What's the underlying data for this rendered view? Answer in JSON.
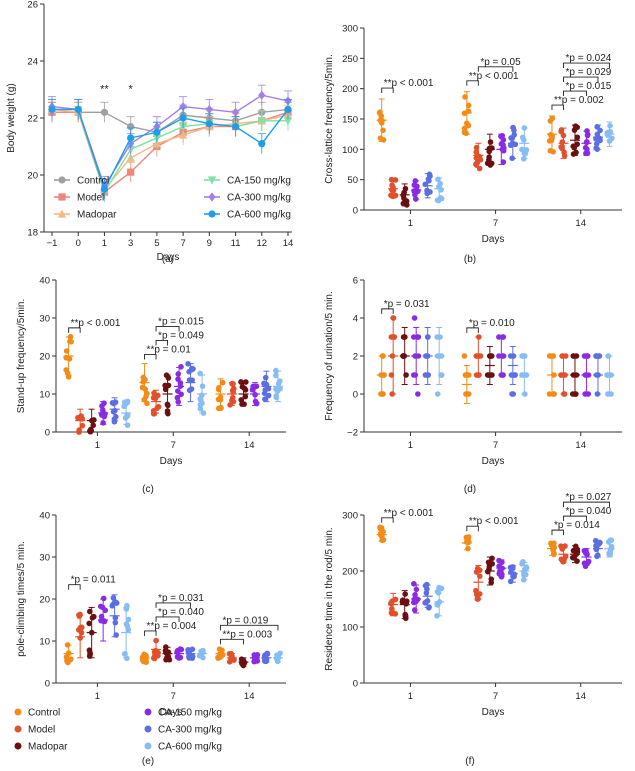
{
  "chart_data": [
    {
      "type": "line",
      "panel_label": "(a)",
      "xlabel": "Days",
      "ylabel": "Body weight (g)",
      "x": [
        -1,
        0,
        1,
        3,
        5,
        7,
        9,
        11,
        12,
        14
      ],
      "x_ticks": [
        "−1",
        "0",
        "1",
        "3",
        "5",
        "7",
        "9",
        "11",
        "12",
        "14"
      ],
      "ylim": [
        18,
        26
      ],
      "y_ticks": [
        "18",
        "20",
        "22",
        "24",
        "26"
      ],
      "annotations": [
        {
          "x": 1,
          "text": "**"
        },
        {
          "x": 3,
          "text": "*"
        }
      ],
      "series": [
        {
          "name": "Control",
          "color": "#a0a0a0",
          "marker": "circle",
          "values": [
            22.2,
            22.2,
            22.2,
            21.7,
            21.5,
            22.1,
            22.0,
            21.9,
            22.2,
            22.3
          ]
        },
        {
          "name": "Model",
          "color": "#f0857b",
          "marker": "square",
          "values": [
            22.2,
            22.2,
            19.4,
            20.1,
            21.0,
            21.5,
            21.7,
            21.7,
            21.9,
            22.2
          ]
        },
        {
          "name": "Madopar",
          "color": "#f5b886",
          "marker": "triangle-up",
          "values": [
            22.3,
            22.2,
            19.5,
            20.6,
            21.1,
            21.4,
            21.7,
            21.8,
            21.9,
            22.1
          ]
        },
        {
          "name": "CA-150 mg/kg",
          "color": "#7ee3a4",
          "marker": "triangle-down",
          "values": [
            22.3,
            22.3,
            19.4,
            20.9,
            21.3,
            21.7,
            21.8,
            21.7,
            21.9,
            21.9
          ]
        },
        {
          "name": "CA-300 mg/kg",
          "color": "#a57ee8",
          "marker": "diamond",
          "values": [
            22.4,
            22.3,
            19.6,
            21.1,
            21.7,
            22.4,
            22.3,
            22.2,
            22.8,
            22.6
          ]
        },
        {
          "name": "CA-600 mg/kg",
          "color": "#1f9de8",
          "marker": "circle",
          "values": [
            22.3,
            22.3,
            19.5,
            21.3,
            21.5,
            22.0,
            21.8,
            21.7,
            21.1,
            22.3
          ]
        }
      ]
    },
    {
      "type": "scatter",
      "panel_label": "(b)",
      "xlabel": "Days",
      "ylabel": "Cross-lattice frequency/5min.",
      "categories": [
        "1",
        "7",
        "14"
      ],
      "ylim": [
        0,
        300
      ],
      "y_ticks": [
        "0",
        "50",
        "100",
        "150",
        "200",
        "250",
        "300"
      ],
      "groups": [
        "Control",
        "Model",
        "Madopar",
        "CA-150 mg/kg",
        "CA-300 mg/kg",
        "CA-600 mg/kg"
      ],
      "medians": [
        [
          148,
          35,
          25,
          33,
          40,
          35
        ],
        [
          160,
          90,
          100,
          100,
          110,
          110
        ],
        [
          125,
          110,
          115,
          110,
          120,
          125
        ]
      ],
      "spreads": [
        [
          35,
          15,
          18,
          15,
          20,
          18
        ],
        [
          35,
          20,
          25,
          25,
          25,
          25
        ],
        [
          30,
          25,
          25,
          20,
          20,
          20
        ]
      ],
      "annotations": [
        {
          "day": 0,
          "groups": [
            0,
            1
          ],
          "text": "**p < 0.001"
        },
        {
          "day": 1,
          "groups": [
            0,
            1
          ],
          "text": "**p < 0.001"
        },
        {
          "day": 1,
          "groups": [
            1,
            4
          ],
          "text": "*p = 0.05"
        },
        {
          "day": 2,
          "groups": [
            0,
            1
          ],
          "text": "**p = 0.002"
        },
        {
          "day": 2,
          "groups": [
            1,
            3
          ],
          "text": "*p = 0.015"
        },
        {
          "day": 2,
          "groups": [
            1,
            4
          ],
          "text": "*p = 0.029"
        },
        {
          "day": 2,
          "groups": [
            1,
            5
          ],
          "text": "*p = 0.024"
        }
      ]
    },
    {
      "type": "scatter",
      "panel_label": "(c)",
      "xlabel": "Days",
      "ylabel": "Stand-up frequency/5min.",
      "categories": [
        "1",
        "7",
        "14"
      ],
      "ylim": [
        0,
        40
      ],
      "y_ticks": [
        "0",
        "10",
        "20",
        "30",
        "40"
      ],
      "groups": [
        "Control",
        "Model",
        "Madopar",
        "CA-150 mg/kg",
        "CA-300 mg/kg",
        "CA-600 mg/kg"
      ],
      "medians": [
        [
          20,
          3,
          3,
          5,
          6,
          5
        ],
        [
          13,
          8,
          10,
          12,
          13,
          10
        ],
        [
          10,
          10,
          10,
          10,
          12,
          12
        ]
      ],
      "spreads": [
        [
          5,
          3,
          3,
          3,
          3,
          3
        ],
        [
          5,
          3,
          5,
          5,
          5,
          5
        ],
        [
          4,
          3,
          3,
          3,
          4,
          4
        ]
      ],
      "annotations": [
        {
          "day": 0,
          "groups": [
            0,
            1
          ],
          "text": "**p < 0.001"
        },
        {
          "day": 1,
          "groups": [
            0,
            1
          ],
          "text": "**p = 0.01"
        },
        {
          "day": 1,
          "groups": [
            1,
            2
          ],
          "text": "*p = 0.049"
        },
        {
          "day": 1,
          "groups": [
            1,
            3
          ],
          "text": "*p = 0.015"
        }
      ]
    },
    {
      "type": "scatter",
      "panel_label": "(d)",
      "xlabel": "Days",
      "ylabel": "Frequency of urination/5 min.",
      "categories": [
        "1",
        "7",
        "14"
      ],
      "ylim": [
        -2,
        6
      ],
      "y_ticks": [
        "−2",
        "0",
        "2",
        "4",
        "6"
      ],
      "groups": [
        "Control",
        "Model",
        "Madopar",
        "CA-150 mg/kg",
        "CA-300 mg/kg",
        "CA-600 mg/kg"
      ],
      "medians": [
        [
          1,
          2,
          2,
          2,
          2,
          2
        ],
        [
          0.5,
          2,
          1.5,
          2,
          1.5,
          1
        ],
        [
          1,
          1,
          1,
          1,
          1,
          1
        ]
      ],
      "spreads": [
        [
          1,
          2,
          1.5,
          1.5,
          1.5,
          1.5
        ],
        [
          1,
          1,
          1,
          1,
          1,
          1
        ],
        [
          1,
          1,
          1,
          1,
          1,
          1
        ]
      ],
      "annotations": [
        {
          "day": 0,
          "groups": [
            0,
            1
          ],
          "text": "*p = 0.031"
        },
        {
          "day": 1,
          "groups": [
            0,
            1
          ],
          "text": "*p = 0.010"
        }
      ]
    },
    {
      "type": "scatter",
      "panel_label": "(e)",
      "xlabel": "Days",
      "ylabel": "pole-climbing times/5 min.",
      "categories": [
        "1",
        "7",
        "14"
      ],
      "ylim": [
        0,
        40
      ],
      "y_ticks": [
        "0",
        "10",
        "20",
        "30",
        "40"
      ],
      "groups": [
        "Control",
        "Model",
        "Madopar",
        "CA-150 mg/kg",
        "CA-300 mg/kg",
        "CA-600 mg/kg"
      ],
      "medians": [
        [
          7,
          11,
          12,
          15,
          16,
          12
        ],
        [
          6,
          8,
          7,
          7,
          7,
          7
        ],
        [
          7,
          6,
          5,
          6,
          6,
          6
        ]
      ],
      "spreads": [
        [
          2,
          5,
          6,
          5,
          5,
          6
        ],
        [
          1,
          2,
          1.5,
          1,
          1,
          1
        ],
        [
          1,
          1,
          1,
          1,
          1,
          1
        ]
      ],
      "annotations": [
        {
          "day": 0,
          "groups": [
            0,
            1
          ],
          "text": "*p = 0.011"
        },
        {
          "day": 1,
          "groups": [
            0,
            1
          ],
          "text": "**p = 0.004"
        },
        {
          "day": 1,
          "groups": [
            1,
            3
          ],
          "text": "*p = 0.040"
        },
        {
          "day": 1,
          "groups": [
            1,
            4
          ],
          "text": "*p = 0.031"
        },
        {
          "day": 2,
          "groups": [
            0,
            2
          ],
          "text": "**p = 0.003"
        },
        {
          "day": 2,
          "groups": [
            0,
            5
          ],
          "text": "*p = 0.019"
        }
      ]
    },
    {
      "type": "scatter",
      "panel_label": "(f)",
      "xlabel": "Days",
      "ylabel": "Residence time in the rod/5 min.",
      "categories": [
        "1",
        "7",
        "14"
      ],
      "ylim": [
        0,
        300
      ],
      "y_ticks": [
        "0",
        "100",
        "200",
        "300"
      ],
      "groups": [
        "Control",
        "Model",
        "Madopar",
        "CA-150 mg/kg",
        "CA-300 mg/kg",
        "CA-600 mg/kg"
      ],
      "medians": [
        [
          265,
          140,
          140,
          150,
          155,
          145
        ],
        [
          250,
          180,
          200,
          205,
          195,
          200
        ],
        [
          240,
          230,
          230,
          225,
          240,
          240
        ]
      ],
      "spreads": [
        [
          12,
          20,
          25,
          25,
          20,
          25
        ],
        [
          12,
          30,
          25,
          15,
          15,
          15
        ],
        [
          12,
          15,
          15,
          15,
          15,
          15
        ]
      ],
      "annotations": [
        {
          "day": 0,
          "groups": [
            0,
            1
          ],
          "text": "**p < 0.001"
        },
        {
          "day": 1,
          "groups": [
            0,
            1
          ],
          "text": "**p < 0.001"
        },
        {
          "day": 2,
          "groups": [
            0,
            1
          ],
          "text": "*p = 0.014"
        },
        {
          "day": 2,
          "groups": [
            1,
            3
          ],
          "text": "*p = 0.040"
        },
        {
          "day": 2,
          "groups": [
            1,
            5
          ],
          "text": "*p = 0.027"
        }
      ]
    }
  ],
  "legend_e": [
    {
      "name": "Control",
      "color": "#f28c18"
    },
    {
      "name": "Model",
      "color": "#e2502b"
    },
    {
      "name": "Madopar",
      "color": "#6b0f10"
    },
    {
      "name": "CA-150 mg/kg",
      "color": "#8a2be2"
    },
    {
      "name": "CA-300 mg/kg",
      "color": "#5b6fe3"
    },
    {
      "name": "CA-600 mg/kg",
      "color": "#87bdf2"
    }
  ]
}
